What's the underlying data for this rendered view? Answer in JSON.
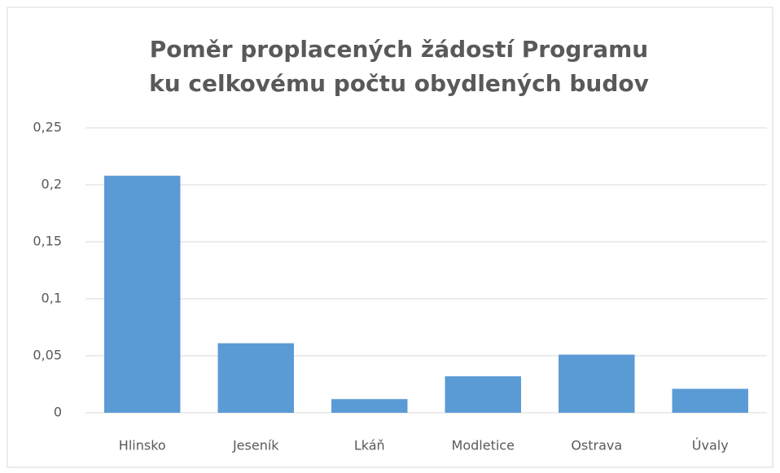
{
  "chart_data": {
    "type": "bar",
    "title": [
      "Poměr proplacených žádostí Programu",
      "ku celkovému počtu obydlených budov"
    ],
    "categories": [
      "Hlinsko",
      "Jeseník",
      "Lkáň",
      "Modletice",
      "Ostrava",
      "Úvaly"
    ],
    "values": [
      0.208,
      0.061,
      0.012,
      0.032,
      0.051,
      0.021
    ],
    "color": "#5b9bd5",
    "ylim": [
      0,
      0.25
    ],
    "yticks": [
      0,
      {
        "value": 0.05,
        "label": "0,05"
      },
      {
        "value": 0.1,
        "label": "0,1"
      },
      {
        "value": 0.15,
        "label": "0,15"
      },
      {
        "value": 0.2,
        "label": "0,2"
      },
      {
        "value": 0.25,
        "label": "0,25"
      }
    ],
    "grid": true
  }
}
